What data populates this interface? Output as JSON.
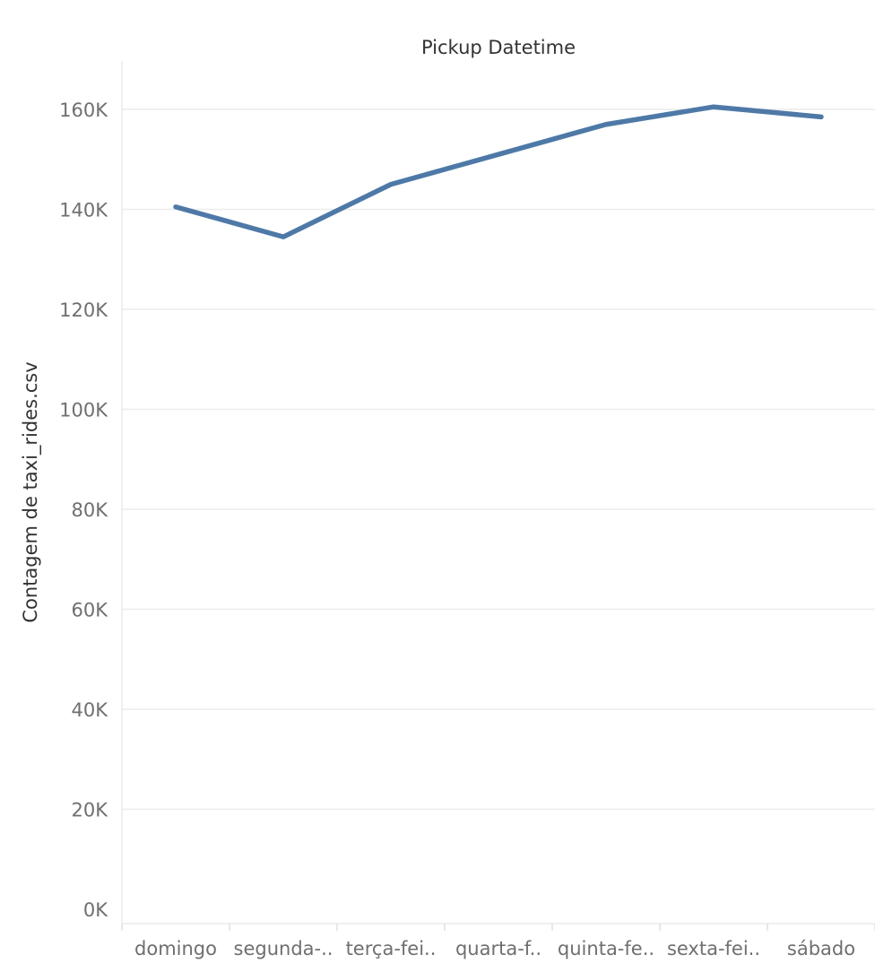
{
  "chart_data": {
    "type": "line",
    "title": "Pickup Datetime",
    "xlabel": "",
    "ylabel": "Contagem de taxi_rides.csv",
    "categories": [
      "domingo",
      "segunda-..",
      "terça-fei..",
      "quarta-f..",
      "quinta-fe..",
      "sexta-fei..",
      "sábado"
    ],
    "series": [
      {
        "values": [
          140500,
          134500,
          145000,
          151000,
          157000,
          160500,
          158500
        ]
      }
    ],
    "ylim": [
      0,
      169000
    ],
    "yticks": [
      0,
      20000,
      40000,
      60000,
      80000,
      100000,
      120000,
      140000,
      160000
    ],
    "ytick_labels": [
      "0K",
      "20K",
      "40K",
      "60K",
      "80K",
      "100K",
      "120K",
      "140K",
      "160K"
    ],
    "grid": true,
    "line_color": "#4e79a7"
  }
}
